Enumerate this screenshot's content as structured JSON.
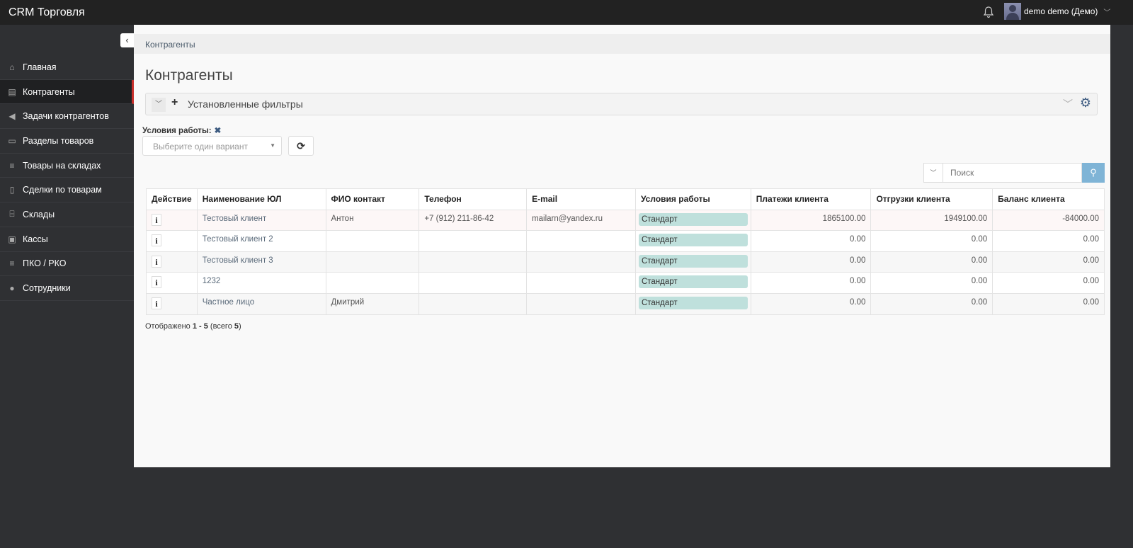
{
  "app": {
    "title": "CRM Торговля",
    "user": "demo demo (Демо)"
  },
  "sidebar": {
    "items": [
      {
        "label": "Главная",
        "icon": "home-icon",
        "glyph": "⌂"
      },
      {
        "label": "Контрагенты",
        "icon": "id-card-icon",
        "glyph": "▤",
        "active": true
      },
      {
        "label": "Задачи контрагентов",
        "icon": "bullhorn-icon",
        "glyph": "◀"
      },
      {
        "label": "Разделы товаров",
        "icon": "window-icon",
        "glyph": "▭"
      },
      {
        "label": "Товары на складах",
        "icon": "list-icon",
        "glyph": "≡"
      },
      {
        "label": "Сделки по товарам",
        "icon": "file-icon",
        "glyph": "▯"
      },
      {
        "label": "Склады",
        "icon": "bank-icon",
        "glyph": "⌸"
      },
      {
        "label": "Кассы",
        "icon": "money-icon",
        "glyph": "▣"
      },
      {
        "label": "ПКО / РКО",
        "icon": "list-icon",
        "glyph": "≡"
      },
      {
        "label": "Сотрудники",
        "icon": "user-circle-icon",
        "glyph": "●"
      }
    ]
  },
  "breadcrumb": "Контрагенты",
  "page_title": "Контрагенты",
  "filters": {
    "label": "Установленные фильтры",
    "condition_label": "Условия работы:",
    "select_placeholder": "Выберите один вариант"
  },
  "search": {
    "placeholder": "Поиск"
  },
  "table": {
    "columns": [
      "Действие",
      "Наименование ЮЛ",
      "ФИО контакт",
      "Телефон",
      "E-mail",
      "Условия работы",
      "Платежи клиента",
      "Отгрузки клиента",
      "Баланс клиента"
    ],
    "rows": [
      {
        "name": "Тестовый клиент",
        "contact": "Антон",
        "phone": "+7 (912) 211-86-42",
        "email": "mailarn@yandex.ru",
        "terms": "Стандарт",
        "payments": "1865100.00",
        "shipments": "1949100.00",
        "balance": "-84000.00"
      },
      {
        "name": "Тестовый клиент 2",
        "contact": "",
        "phone": "",
        "email": "",
        "terms": "Стандарт",
        "payments": "0.00",
        "shipments": "0.00",
        "balance": "0.00"
      },
      {
        "name": "Тестовый клиент 3",
        "contact": "",
        "phone": "",
        "email": "",
        "terms": "Стандарт",
        "payments": "0.00",
        "shipments": "0.00",
        "balance": "0.00"
      },
      {
        "name": "1232",
        "contact": "",
        "phone": "",
        "email": "",
        "terms": "Стандарт",
        "payments": "0.00",
        "shipments": "0.00",
        "balance": "0.00"
      },
      {
        "name": "Частное лицо",
        "contact": "Дмитрий",
        "phone": "",
        "email": "",
        "terms": "Стандарт",
        "payments": "0.00",
        "shipments": "0.00",
        "balance": "0.00"
      }
    ]
  },
  "summary": {
    "prefix": "Отображено ",
    "range": "1 - 5",
    "suffix": " (всего ",
    "total": "5",
    "end": ")"
  },
  "colors": {
    "topbar": "#222222",
    "sidebar": "#2f3033",
    "active_marker": "#c9302c",
    "badge": "#bfe0dc",
    "search_button": "#7fb4d6"
  }
}
